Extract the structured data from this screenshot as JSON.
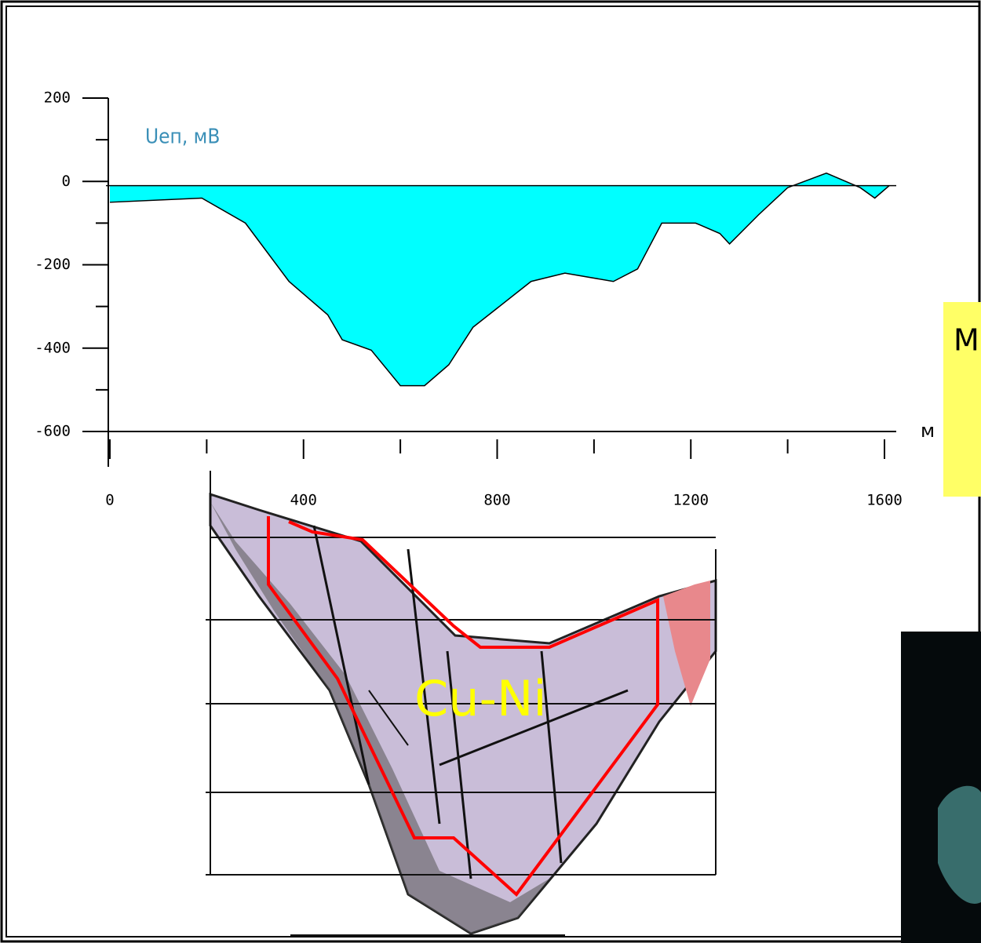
{
  "chart_data": {
    "type": "area",
    "x": [
      0,
      190,
      280,
      370,
      450,
      480,
      540,
      600,
      650,
      700,
      750,
      870,
      940,
      1040,
      1090,
      1140,
      1210,
      1260,
      1280,
      1340,
      1400,
      1480,
      1550,
      1580,
      1610
    ],
    "series": [
      {
        "name": "Uеп, мВ",
        "color": "#00ffff",
        "values": [
          -50,
          -40,
          -100,
          -240,
          -320,
          -380,
          -405,
          -490,
          -490,
          -440,
          -350,
          -240,
          -220,
          -240,
          -210,
          -100,
          -100,
          -125,
          -150,
          -80,
          -15,
          20,
          -15,
          -40,
          -10
        ]
      }
    ],
    "baseline": -10,
    "xlim": [
      0,
      1600
    ],
    "xticks": [
      0,
      400,
      800,
      1200,
      1600
    ],
    "ylim": [
      -600,
      200
    ],
    "yticks": [
      200,
      0,
      -200,
      -400,
      -600
    ],
    "x_label": "м",
    "annotations": [
      "Cu-Ni",
      "М"
    ]
  }
}
